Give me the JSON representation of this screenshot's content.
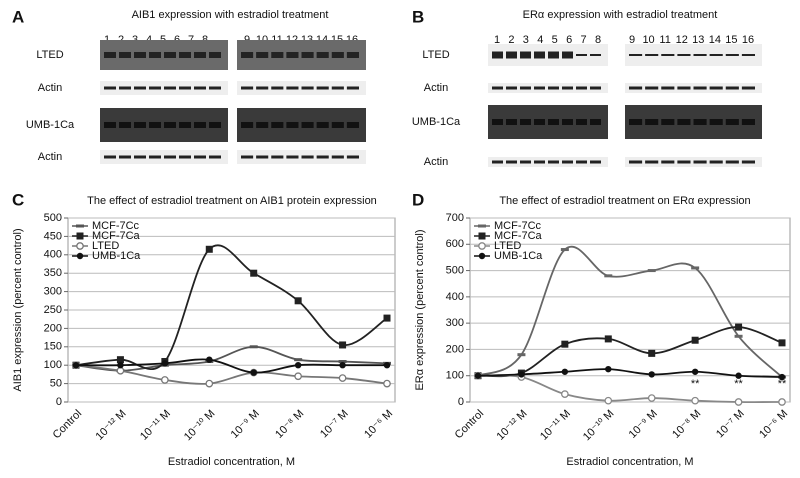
{
  "panels": [
    {
      "letter": "A",
      "title": "AIB1 expression with estradiol treatment",
      "lanes": [
        "1",
        "2",
        "3",
        "4",
        "5",
        "6",
        "7",
        "8",
        "9",
        "10",
        "11",
        "12",
        "13",
        "14",
        "15",
        "16"
      ],
      "rows": [
        "LTED",
        "Actin",
        "UMB-1Ca",
        "Actin"
      ]
    },
    {
      "letter": "B",
      "title": "ERα expression with estradiol treatment",
      "lanes": [
        "1",
        "2",
        "3",
        "4",
        "5",
        "6",
        "7",
        "8",
        "9",
        "10",
        "11",
        "12",
        "13",
        "14",
        "15",
        "16"
      ],
      "rows": [
        "LTED",
        "Actin",
        "UMB-1Ca",
        "Actin"
      ]
    }
  ],
  "chart_data": [
    {
      "type": "line",
      "letter": "C",
      "title": "The effect of estradiol treatment on AIB1 protein expression",
      "xlabel": "Estradiol concentration, M",
      "ylabel": "AIB1 expression (percent control)",
      "categories": [
        "Control",
        "10⁻¹² M",
        "10⁻¹¹ M",
        "10⁻¹⁰ M",
        "10⁻⁹ M",
        "10⁻⁸ M",
        "10⁻⁷ M",
        "10⁻⁶ M"
      ],
      "series": [
        {
          "name": "MCF-7Cc",
          "color": "#555555",
          "marker": "dash",
          "values": [
            100,
            85,
            100,
            110,
            150,
            115,
            110,
            105
          ]
        },
        {
          "name": "MCF-7Ca",
          "color": "#222222",
          "marker": "square",
          "values": [
            100,
            115,
            110,
            415,
            350,
            275,
            155,
            228
          ]
        },
        {
          "name": "LTED",
          "color": "#777777",
          "marker": "open",
          "values": [
            100,
            85,
            60,
            50,
            80,
            70,
            65,
            50
          ]
        },
        {
          "name": "UMB-1Ca",
          "color": "#111111",
          "marker": "circle",
          "values": [
            100,
            100,
            105,
            115,
            80,
            100,
            100,
            100
          ]
        }
      ],
      "ylim": [
        0,
        500
      ],
      "yticks": [
        0,
        50,
        100,
        150,
        200,
        250,
        300,
        350,
        400,
        450,
        500
      ],
      "grid": true,
      "legend": "upper left",
      "annotations": []
    },
    {
      "type": "line",
      "letter": "D",
      "title": "The effect of estradiol treatment on ERα expression",
      "xlabel": "Estradiol concentration, M",
      "ylabel": "ERα expression (percent control)",
      "categories": [
        "Control",
        "10⁻¹² M",
        "10⁻¹¹ M",
        "10⁻¹⁰ M",
        "10⁻⁹ M",
        "10⁻⁸ M",
        "10⁻⁷ M",
        "10⁻⁶ M"
      ],
      "series": [
        {
          "name": "MCF-7Cc",
          "color": "#666666",
          "marker": "dash",
          "values": [
            100,
            180,
            580,
            480,
            500,
            510,
            250,
            95
          ]
        },
        {
          "name": "MCF-7Ca",
          "color": "#222222",
          "marker": "square",
          "values": [
            100,
            110,
            220,
            240,
            185,
            235,
            285,
            225
          ]
        },
        {
          "name": "LTED",
          "color": "#888888",
          "marker": "open",
          "values": [
            100,
            95,
            30,
            5,
            15,
            5,
            0,
            0
          ]
        },
        {
          "name": "UMB-1Ca",
          "color": "#111111",
          "marker": "circle",
          "values": [
            100,
            105,
            115,
            125,
            105,
            115,
            100,
            95
          ]
        }
      ],
      "ylim": [
        0,
        700
      ],
      "yticks": [
        0,
        100,
        200,
        300,
        400,
        500,
        600,
        700
      ],
      "grid": true,
      "legend": "upper left",
      "annotations": [
        "**",
        "**",
        "**"
      ]
    }
  ]
}
